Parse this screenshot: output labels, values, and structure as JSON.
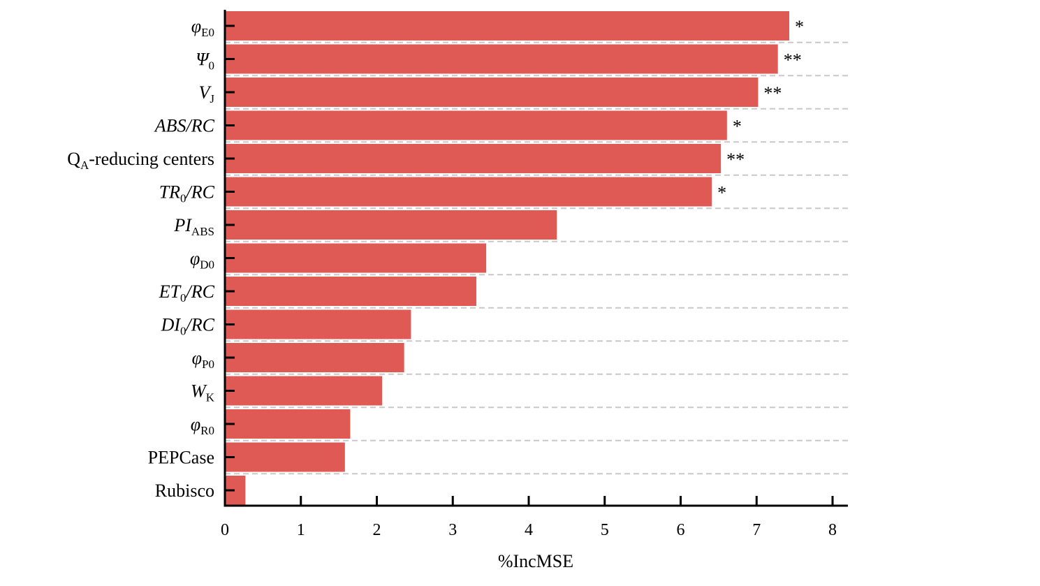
{
  "chart_data": {
    "type": "bar",
    "orientation": "horizontal",
    "xlabel": "%IncMSE",
    "ylabel": "",
    "xlim": [
      0,
      8
    ],
    "x_ticks": [
      0,
      1,
      2,
      3,
      4,
      5,
      6,
      7,
      8
    ],
    "grid": "dashed horizontal separators between bars",
    "bar_color": "#e05a55",
    "categories": [
      {
        "name": "φE0",
        "parts": [
          {
            "t": "φ",
            "style": "it"
          },
          {
            "t": "E0",
            "style": "sub"
          }
        ],
        "value": 7.43,
        "significance": "*"
      },
      {
        "name": "Ψ0",
        "parts": [
          {
            "t": "Ψ",
            "style": "it"
          },
          {
            "t": "0",
            "style": "sub"
          }
        ],
        "value": 7.28,
        "significance": "**"
      },
      {
        "name": "VJ",
        "parts": [
          {
            "t": "V",
            "style": "it"
          },
          {
            "t": "J",
            "style": "sub"
          }
        ],
        "value": 7.02,
        "significance": "**"
      },
      {
        "name": "ABS/RC",
        "parts": [
          {
            "t": "ABS/RC",
            "style": "it"
          }
        ],
        "value": 6.61,
        "significance": "*"
      },
      {
        "name": "QA-reducing centers",
        "parts": [
          {
            "t": "Q",
            "style": ""
          },
          {
            "t": "A",
            "style": "sub"
          },
          {
            "t": "-reducing centers",
            "style": ""
          }
        ],
        "value": 6.53,
        "significance": "**"
      },
      {
        "name": "TR0/RC",
        "parts": [
          {
            "t": "TR",
            "style": "it"
          },
          {
            "t": "0",
            "style": "sub"
          },
          {
            "t": "/RC",
            "style": "it"
          }
        ],
        "value": 6.41,
        "significance": "*"
      },
      {
        "name": "PIABS",
        "parts": [
          {
            "t": "PI",
            "style": "it"
          },
          {
            "t": "ABS",
            "style": "sub"
          }
        ],
        "value": 4.37,
        "significance": ""
      },
      {
        "name": "φD0",
        "parts": [
          {
            "t": "φ",
            "style": "it"
          },
          {
            "t": "D0",
            "style": "sub"
          }
        ],
        "value": 3.44,
        "significance": ""
      },
      {
        "name": "ET0/RC",
        "parts": [
          {
            "t": "ET",
            "style": "it"
          },
          {
            "t": "0",
            "style": "sub"
          },
          {
            "t": "/RC",
            "style": "it"
          }
        ],
        "value": 3.31,
        "significance": ""
      },
      {
        "name": "DI0/RC",
        "parts": [
          {
            "t": "DI",
            "style": "it"
          },
          {
            "t": "0",
            "style": "sub"
          },
          {
            "t": "/RC",
            "style": "it"
          }
        ],
        "value": 2.45,
        "significance": ""
      },
      {
        "name": "φP0",
        "parts": [
          {
            "t": "φ",
            "style": "it"
          },
          {
            "t": "P0",
            "style": "sub"
          }
        ],
        "value": 2.36,
        "significance": ""
      },
      {
        "name": "WK",
        "parts": [
          {
            "t": "W",
            "style": "it"
          },
          {
            "t": "K",
            "style": "sub"
          }
        ],
        "value": 2.07,
        "significance": ""
      },
      {
        "name": "φR0",
        "parts": [
          {
            "t": "φ",
            "style": "it"
          },
          {
            "t": "R0",
            "style": "sub"
          }
        ],
        "value": 1.65,
        "significance": ""
      },
      {
        "name": "PEPCase",
        "parts": [
          {
            "t": "PEPCase",
            "style": ""
          }
        ],
        "value": 1.58,
        "significance": ""
      },
      {
        "name": "Rubisco",
        "parts": [
          {
            "t": "Rubisco",
            "style": ""
          }
        ],
        "value": 0.27,
        "significance": ""
      }
    ]
  }
}
